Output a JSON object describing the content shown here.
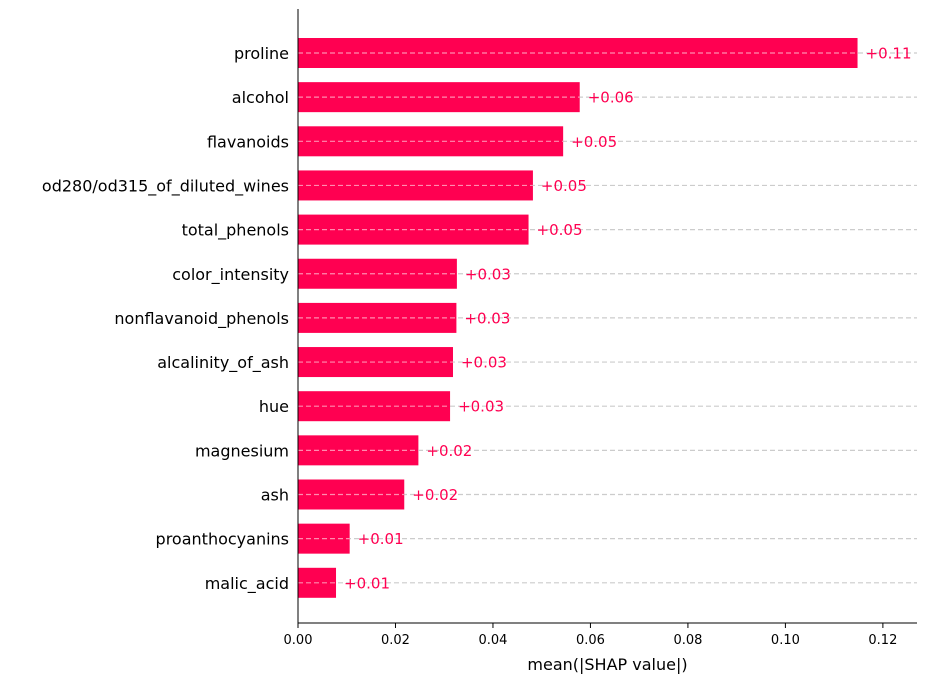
{
  "chart_data": {
    "type": "bar",
    "orientation": "horizontal",
    "title": "",
    "xlabel": "mean(|SHAP value|)",
    "ylabel": "",
    "xlim": [
      0,
      0.127
    ],
    "x_ticks": [
      0.0,
      0.02,
      0.04,
      0.06,
      0.08,
      0.1,
      0.12
    ],
    "x_tick_labels": [
      "0.00",
      "0.02",
      "0.04",
      "0.06",
      "0.08",
      "0.10",
      "0.12"
    ],
    "grid": "dashed horizontal guide line per bar",
    "bar_color": "#ff0051",
    "categories": [
      "proline",
      "alcohol",
      "flavanoids",
      "od280/od315_of_diluted_wines",
      "total_phenols",
      "color_intensity",
      "nonflavanoid_phenols",
      "alcalinity_of_ash",
      "hue",
      "magnesium",
      "ash",
      "proanthocyanins",
      "malic_acid"
    ],
    "values": [
      0.1148,
      0.0578,
      0.0544,
      0.0482,
      0.0473,
      0.0326,
      0.0325,
      0.0318,
      0.0312,
      0.0247,
      0.0218,
      0.0106,
      0.0078
    ],
    "value_labels": [
      "+0.11",
      "+0.06",
      "+0.05",
      "+0.05",
      "+0.05",
      "+0.03",
      "+0.03",
      "+0.03",
      "+0.03",
      "+0.02",
      "+0.02",
      "+0.01",
      "+0.01"
    ]
  }
}
